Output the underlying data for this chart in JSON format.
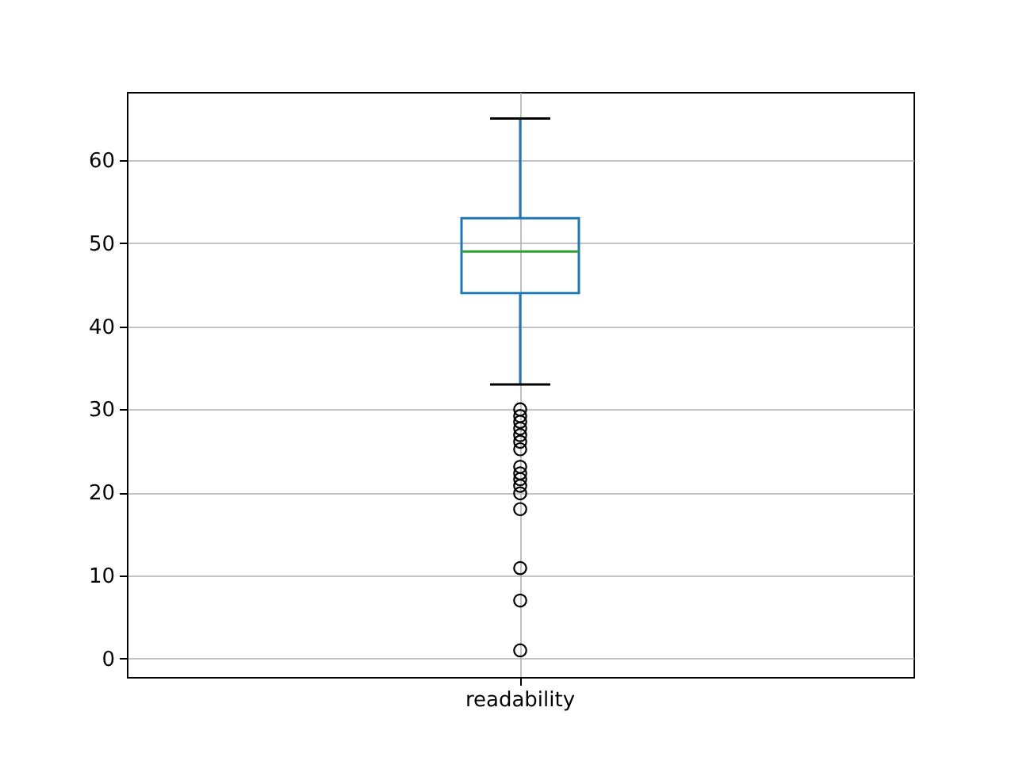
{
  "chart_data": {
    "type": "box",
    "categories": [
      "readability"
    ],
    "boxes": [
      {
        "low": 33,
        "q1": 44,
        "median": 49,
        "q3": 53,
        "high": 65,
        "outliers": [
          30,
          29.2,
          28.5,
          27.7,
          26.9,
          26.1,
          25.2,
          23.1,
          22.3,
          21.6,
          20.8,
          19.9,
          18.0,
          10.9,
          7.0,
          1.0
        ]
      }
    ],
    "ylim": [
      -2.2,
      68.2
    ],
    "yticks": [
      0,
      10,
      20,
      30,
      40,
      50,
      60
    ],
    "grid": true
  }
}
